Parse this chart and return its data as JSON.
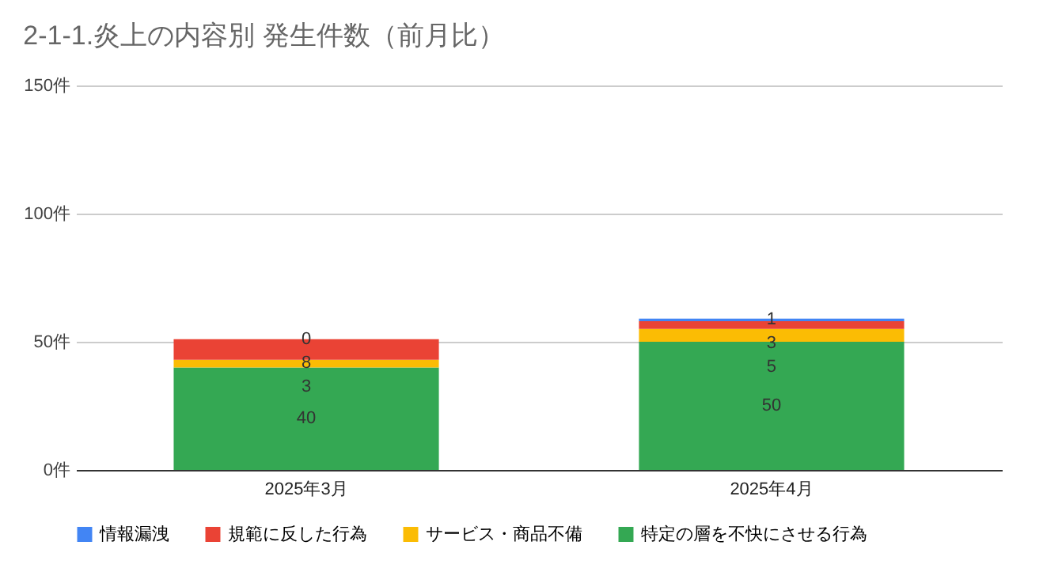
{
  "chart_data": {
    "type": "bar",
    "title": "2-1-1.炎上の内容別 発生件数（前月比）",
    "categories": [
      "2025年3月",
      "2025年4月"
    ],
    "series": [
      {
        "name": "特定の層を不快にさせる行為",
        "color": "#34a853",
        "values": [
          40,
          50
        ]
      },
      {
        "name": "サービス・商品不備",
        "color": "#fbbc04",
        "values": [
          3,
          5
        ]
      },
      {
        "name": "規範に反した行為",
        "color": "#ea4335",
        "values": [
          8,
          3
        ]
      },
      {
        "name": "情報漏洩",
        "color": "#4285f4",
        "values": [
          0,
          1
        ]
      }
    ],
    "stacked": true,
    "data_labels": true,
    "ylim": [
      0,
      150
    ],
    "yticks": [
      {
        "value": 0,
        "label": "0件"
      },
      {
        "value": 50,
        "label": "50件"
      },
      {
        "value": 100,
        "label": "100件"
      },
      {
        "value": 150,
        "label": "150件"
      }
    ],
    "grid": "y",
    "legend": "bottom"
  }
}
